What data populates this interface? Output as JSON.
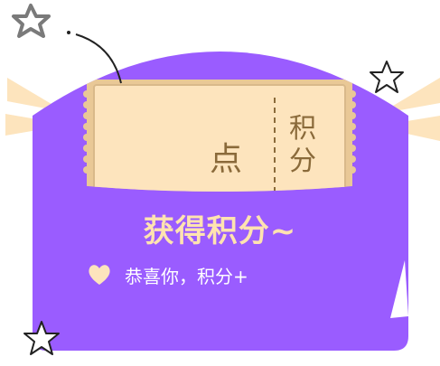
{
  "ticket": {
    "points_char": "点",
    "stub_char_1": "积",
    "stub_char_2": "分"
  },
  "card": {
    "title": "获得积分~",
    "message": "恭喜你，积分+"
  },
  "colors": {
    "card_purple": "#9a5cff",
    "card_purple_dark": "#8a4af5",
    "ticket_cream": "#fde4bd",
    "ticket_border": "#d9b98a",
    "title_color": "#ffe3b0",
    "ray_color": "#fde4bd"
  },
  "icons": {
    "heart": "heart-icon",
    "star": "star-icon"
  }
}
